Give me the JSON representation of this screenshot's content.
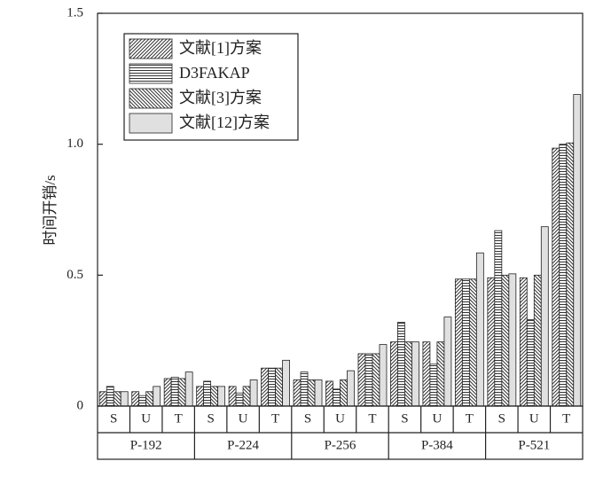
{
  "chart_data": {
    "type": "grouped_bar",
    "ylabel": "时间开销/s",
    "categories": [
      "S",
      "U",
      "T",
      "S",
      "U",
      "T",
      "S",
      "U",
      "T",
      "S",
      "U",
      "T",
      "S",
      "U",
      "T"
    ],
    "groups": [
      "P-192",
      "P-224",
      "P-256",
      "P-384",
      "P-521"
    ],
    "series": [
      {
        "name": "文献[1]方案",
        "color": "#333333",
        "pattern": "diagonal",
        "values": [
          0.055,
          0.055,
          0.105,
          0.075,
          0.075,
          0.145,
          0.1,
          0.095,
          0.2,
          0.245,
          0.245,
          0.485,
          0.49,
          0.49,
          0.985
        ]
      },
      {
        "name": "D3FAKAP",
        "color": "#333333",
        "pattern": "horizontal",
        "values": [
          0.075,
          0.04,
          0.11,
          0.095,
          0.05,
          0.145,
          0.13,
          0.065,
          0.2,
          0.32,
          0.16,
          0.485,
          0.67,
          0.33,
          1.0
        ]
      },
      {
        "name": "文献[3]方案",
        "color": "#333333",
        "pattern": "backdiagonal",
        "values": [
          0.055,
          0.055,
          0.105,
          0.075,
          0.075,
          0.145,
          0.1,
          0.1,
          0.2,
          0.245,
          0.245,
          0.485,
          0.5,
          0.5,
          1.005
        ]
      },
      {
        "name": "文献[12]方案",
        "color": "#e0e0e0",
        "pattern": "solid",
        "values": [
          0.055,
          0.075,
          0.13,
          0.075,
          0.1,
          0.175,
          0.1,
          0.135,
          0.235,
          0.245,
          0.34,
          0.585,
          0.505,
          0.685,
          1.19
        ]
      }
    ],
    "ylim": [
      0,
      1.5
    ],
    "yticks": [
      0,
      0.5,
      {
        "value": 1,
        "label": "1.0"
      },
      1.5
    ],
    "legend": "upper left"
  }
}
